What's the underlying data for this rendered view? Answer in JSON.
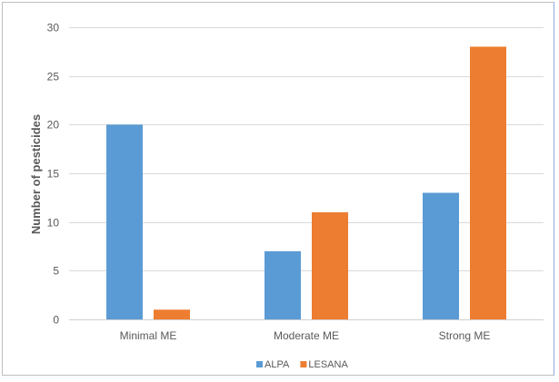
{
  "chart_data": {
    "type": "bar",
    "categories": [
      "Minimal ME",
      "Moderate ME",
      "Strong ME"
    ],
    "series": [
      {
        "name": "ALPA",
        "values": [
          20,
          7,
          13
        ],
        "color": "#5b9bd5"
      },
      {
        "name": "LESANA",
        "values": [
          1,
          11,
          28
        ],
        "color": "#ed7d31"
      }
    ],
    "title": "",
    "xlabel": "",
    "ylabel": "Number of pesticides",
    "ylim": [
      0,
      30
    ],
    "yticks": [
      0,
      5,
      10,
      15,
      20,
      25,
      30
    ],
    "grid": true,
    "legend_position": "bottom",
    "gridline_color": "#d9d9d9"
  }
}
